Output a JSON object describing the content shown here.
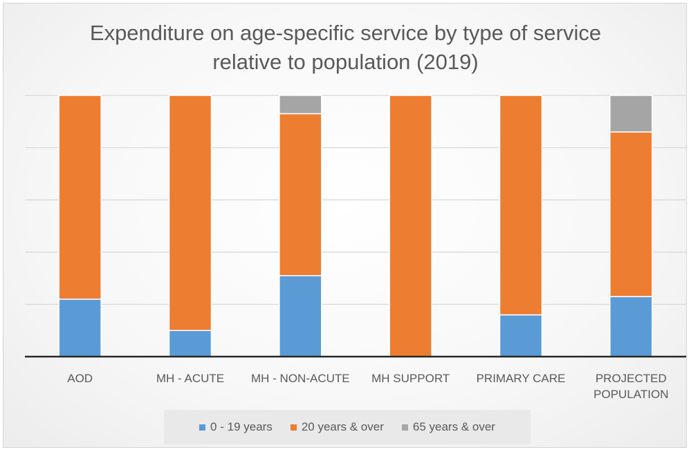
{
  "chart_data": {
    "type": "bar",
    "stacked": true,
    "title": "Expenditure on age-specific service by type of service relative to population (2019)",
    "title_lines": [
      "Expenditure on age-specific service by type of service",
      "relative to population (2019)"
    ],
    "categories": [
      [
        "AOD"
      ],
      [
        "MH - ACUTE"
      ],
      [
        "MH - NON-ACUTE"
      ],
      [
        "MH SUPPORT"
      ],
      [
        "PRIMARY CARE"
      ],
      [
        "PROJECTED",
        "POPULATION"
      ]
    ],
    "series": [
      {
        "name": "0 - 19 years",
        "color": "#5B9BD5",
        "values": [
          22,
          10,
          31,
          0,
          16,
          23
        ]
      },
      {
        "name": "20 years & over",
        "color": "#ED7D31",
        "values": [
          78,
          90,
          62,
          100,
          84,
          63
        ]
      },
      {
        "name": "65 years & over",
        "color": "#A5A5A5",
        "values": [
          0,
          0,
          7,
          0,
          0,
          14
        ]
      }
    ],
    "ylim": [
      0,
      100
    ],
    "grid": true,
    "legend_position": "bottom"
  }
}
